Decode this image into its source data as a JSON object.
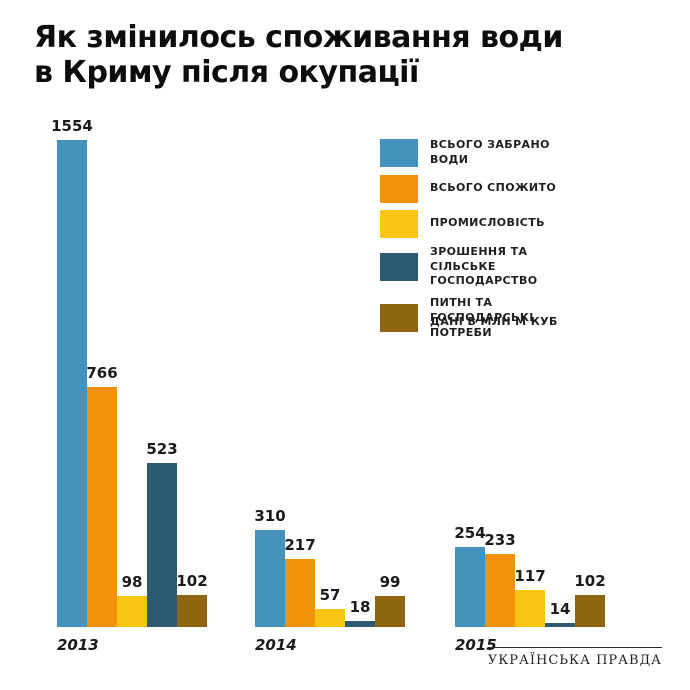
{
  "title": "Як змінилось споживання води\nв Криму після окупації",
  "units_note": "ДАНІ В МЛН М КУБ",
  "footer": {
    "brand": "УКРАЇНСЬКА ПРАВДА"
  },
  "chart_data": {
    "type": "bar",
    "categories": [
      "2013",
      "2014",
      "2015"
    ],
    "series": [
      {
        "name": "ВСЬОГО ЗАБРАНО ВОДИ",
        "color": "#4592bc",
        "values": [
          1554,
          310,
          254
        ]
      },
      {
        "name": "ВСЬОГО СПОЖИТО",
        "color": "#f39208",
        "values": [
          766,
          217,
          233
        ]
      },
      {
        "name": "ПРОМИСЛОВІСТЬ",
        "color": "#f8c513",
        "values": [
          98,
          57,
          117
        ]
      },
      {
        "name": "ЗРОШЕННЯ ТА СІЛЬСЬКЕ ГОСПОДАРСТВО",
        "color": "#2d5a73",
        "values": [
          523,
          18,
          14
        ]
      },
      {
        "name": "ПИТНІ ТА ГОСПОДАРСЬКІ ПОТРЕБИ",
        "color": "#8e6612",
        "values": [
          102,
          99,
          102
        ]
      }
    ],
    "ylim": [
      0,
      1554
    ],
    "value_labels": true,
    "grid": false,
    "legend_position": "right",
    "units": "млн м куб"
  }
}
